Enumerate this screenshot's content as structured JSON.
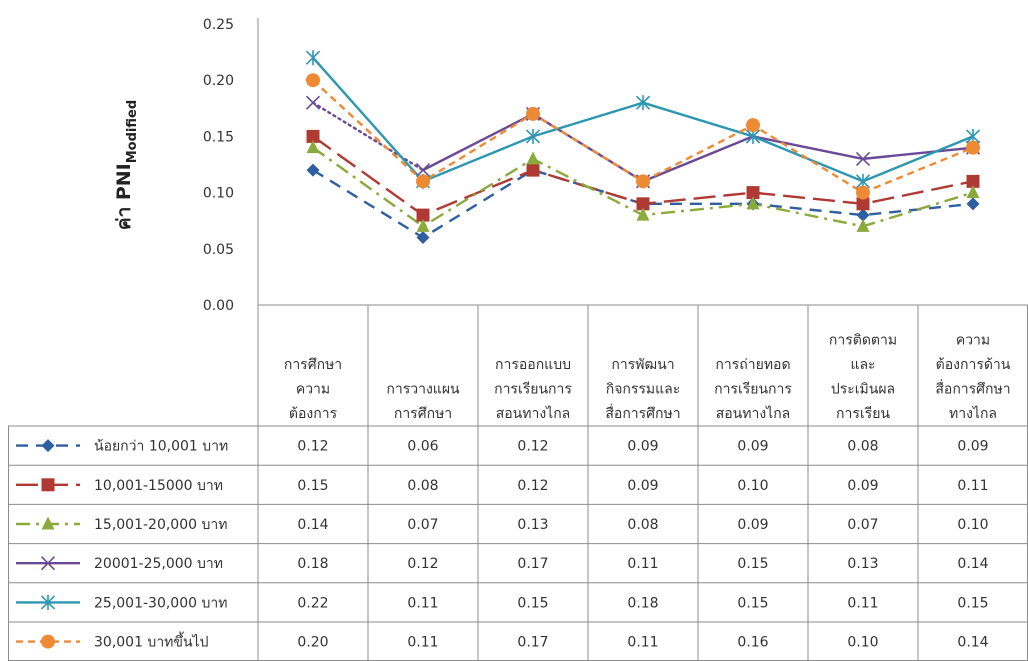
{
  "chart_data": {
    "type": "line",
    "ylabel_main": "ค่า PNI",
    "ylabel_sub": "Modified",
    "ylim": [
      0,
      0.25
    ],
    "yticks": [
      "0.00",
      "0.05",
      "0.10",
      "0.15",
      "0.20",
      "0.25"
    ],
    "categories": [
      [
        "การศึกษา",
        "ความ",
        "ต้องการ"
      ],
      [
        "การวางแผน",
        "การศึกษา"
      ],
      [
        "การออกแบบ",
        "การเรียนการ",
        "สอนทางไกล"
      ],
      [
        "การพัฒนา",
        "กิจกรรมและ",
        "สื่อการศึกษา"
      ],
      [
        "การถ่ายทอด",
        "การเรียนการ",
        "สอนทางไกล"
      ],
      [
        "การติดตาม",
        "และ",
        "ประเมินผล",
        "การเรียน"
      ],
      [
        "ความ",
        "ต้องการด้าน",
        "สื่อการศึกษา",
        "ทางไกล"
      ]
    ],
    "series": [
      {
        "name": "น้อยกว่า 10,001 บาท",
        "color": "#2f5fa0",
        "marker": "diamond",
        "dash": "dashed",
        "values": [
          0.12,
          0.06,
          0.12,
          0.09,
          0.09,
          0.08,
          0.09
        ],
        "labels": [
          "0.12",
          "0.06",
          "0.12",
          "0.09",
          "0.09",
          "0.08",
          "0.09"
        ]
      },
      {
        "name": "10,001-15000 บาท",
        "color": "#b03a33",
        "marker": "square",
        "dash": "longdash",
        "values": [
          0.15,
          0.08,
          0.12,
          0.09,
          0.1,
          0.09,
          0.11
        ],
        "labels": [
          "0.15",
          "0.08",
          "0.12",
          "0.09",
          "0.10",
          "0.09",
          "0.11"
        ]
      },
      {
        "name": "15,001-20,000 บาท",
        "color": "#8aaa3c",
        "marker": "triangle",
        "dash": "dashdot",
        "values": [
          0.14,
          0.07,
          0.13,
          0.08,
          0.09,
          0.07,
          0.1
        ],
        "labels": [
          "0.14",
          "0.07",
          "0.13",
          "0.08",
          "0.09",
          "0.07",
          "0.10"
        ]
      },
      {
        "name": "20001-25,000 บาท",
        "color": "#6a4a96",
        "marker": "x",
        "dash": "dotted-first",
        "values": [
          0.18,
          0.12,
          0.17,
          0.11,
          0.15,
          0.13,
          0.14
        ],
        "labels": [
          "0.18",
          "0.12",
          "0.17",
          "0.11",
          "0.15",
          "0.13",
          "0.14"
        ]
      },
      {
        "name": "25,001-30,000 บาท",
        "color": "#2c97b0",
        "marker": "star",
        "dash": "solid",
        "values": [
          0.22,
          0.11,
          0.15,
          0.18,
          0.15,
          0.11,
          0.15
        ],
        "labels": [
          "0.22",
          "0.11",
          "0.15",
          "0.18",
          "0.15",
          "0.11",
          "0.15"
        ]
      },
      {
        "name": "30,001 บาทขึ้นไป",
        "color": "#ee8a33",
        "marker": "circle",
        "dash": "shortdash",
        "values": [
          0.2,
          0.11,
          0.17,
          0.11,
          0.16,
          0.1,
          0.14
        ],
        "labels": [
          "0.20",
          "0.11",
          "0.17",
          "0.11",
          "0.16",
          "0.10",
          "0.14"
        ]
      }
    ]
  }
}
